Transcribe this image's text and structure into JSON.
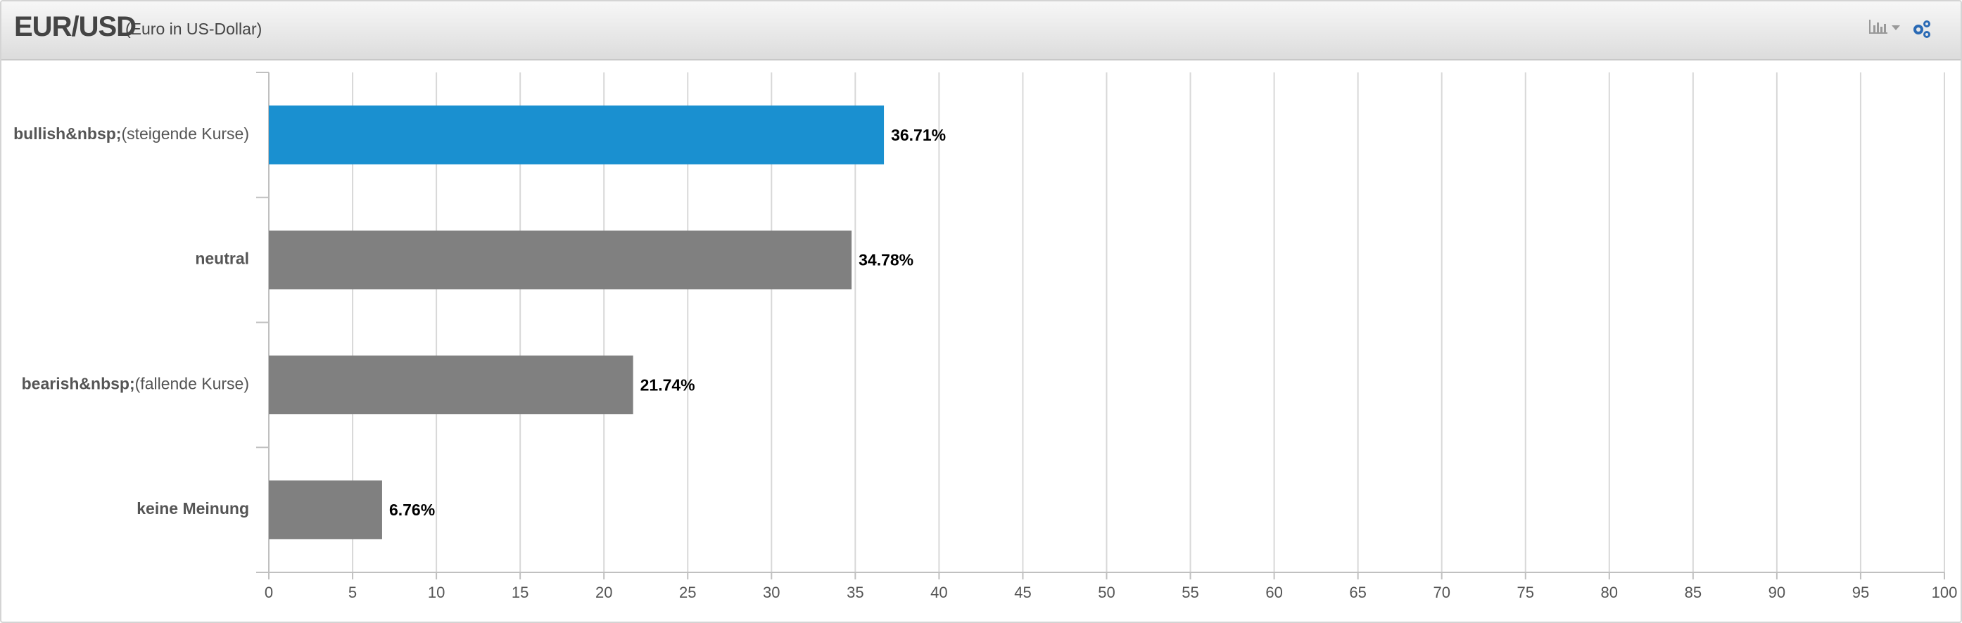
{
  "chart_data": {
    "type": "bar",
    "orientation": "horizontal",
    "title": "EUR/USD",
    "subtitle": "(Euro in US-Dollar)",
    "categories": [
      "bullish&nbsp;(steigende Kurse)",
      "neutral",
      "bearish&nbsp;(fallende Kurse)",
      "keine Meinung"
    ],
    "values": [
      36.71,
      34.78,
      21.74,
      6.76
    ],
    "value_labels": [
      "36.71%",
      "34.78%",
      "21.74%",
      "6.76%"
    ],
    "colors": [
      "#1a90d0",
      "#808080",
      "#808080",
      "#808080"
    ],
    "xlim": [
      0,
      100
    ],
    "xticks": [
      0,
      5,
      10,
      15,
      20,
      25,
      30,
      35,
      40,
      45,
      50,
      55,
      60,
      65,
      70,
      75,
      80,
      85,
      90,
      95,
      100
    ],
    "grid": true
  }
}
